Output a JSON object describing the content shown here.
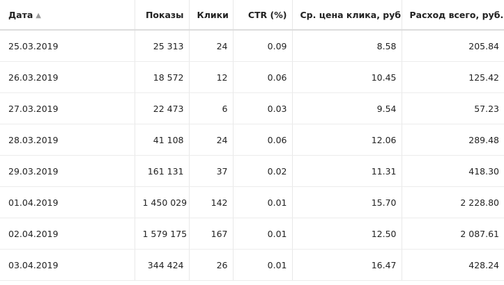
{
  "table": {
    "headers": {
      "date": "Дата",
      "impressions": "Показы",
      "clicks": "Клики",
      "ctr": "CTR (%)",
      "avg_cpc": "Ср. цена клика, руб.",
      "total_cost": "Расход всего, руб."
    },
    "sort_icon": "sort-ascending-icon",
    "rows": [
      {
        "date": "25.03.2019",
        "impressions": "25 313",
        "clicks": "24",
        "ctr": "0.09",
        "avg_cpc": "8.58",
        "total_cost": "205.84"
      },
      {
        "date": "26.03.2019",
        "impressions": "18 572",
        "clicks": "12",
        "ctr": "0.06",
        "avg_cpc": "10.45",
        "total_cost": "125.42"
      },
      {
        "date": "27.03.2019",
        "impressions": "22 473",
        "clicks": "6",
        "ctr": "0.03",
        "avg_cpc": "9.54",
        "total_cost": "57.23"
      },
      {
        "date": "28.03.2019",
        "impressions": "41 108",
        "clicks": "24",
        "ctr": "0.06",
        "avg_cpc": "12.06",
        "total_cost": "289.48"
      },
      {
        "date": "29.03.2019",
        "impressions": "161 131",
        "clicks": "37",
        "ctr": "0.02",
        "avg_cpc": "11.31",
        "total_cost": "418.30"
      },
      {
        "date": "01.04.2019",
        "impressions": "1 450 029",
        "clicks": "142",
        "ctr": "0.01",
        "avg_cpc": "15.70",
        "total_cost": "2 228.80"
      },
      {
        "date": "02.04.2019",
        "impressions": "1 579 175",
        "clicks": "167",
        "ctr": "0.01",
        "avg_cpc": "12.50",
        "total_cost": "2 087.61"
      },
      {
        "date": "03.04.2019",
        "impressions": "344 424",
        "clicks": "26",
        "ctr": "0.01",
        "avg_cpc": "16.47",
        "total_cost": "428.24"
      }
    ]
  }
}
